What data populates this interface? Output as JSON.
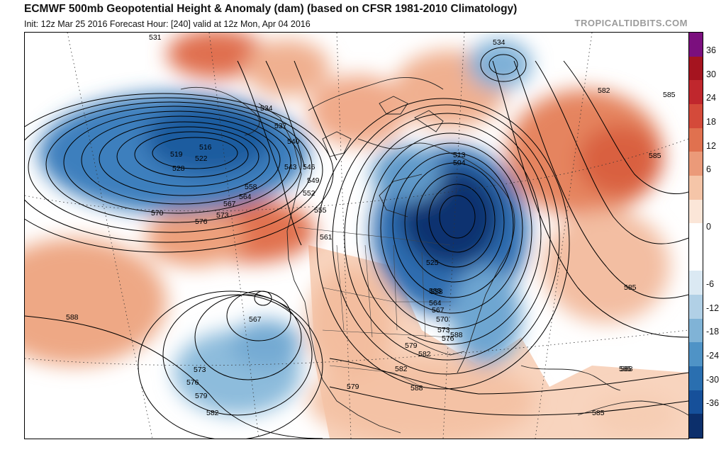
{
  "header": {
    "title": "ECMWF 500mb Geopotential Height & Anomaly (dam) (based on CFSR 1981-2010 Climatology)",
    "subtitle": "Init: 12z Mar 25 2016   Forecast Hour: [240]   valid at 12z Mon, Apr 04 2016",
    "credit": "TROPICALTIDBITS.COM"
  },
  "colorbar": {
    "ticks": [
      "36",
      "30",
      "24",
      "18",
      "12",
      "6",
      "0",
      "-6",
      "-12",
      "-18",
      "-24",
      "-30",
      "-36"
    ],
    "colors": [
      "#7b0f7e",
      "#a5141f",
      "#c0272d",
      "#d44a3a",
      "#e0714f",
      "#eb9a79",
      "#f5c5a8",
      "#fbe6d8",
      "#ffffff",
      "#ffffff",
      "#dbe9f3",
      "#b1d0e6",
      "#80b3d6",
      "#4f93c6",
      "#2a6fb0",
      "#16509a",
      "#0c2f6b"
    ]
  },
  "contour_labels": [
    "531",
    "534",
    "537",
    "540",
    "543",
    "546",
    "549",
    "552",
    "555",
    "558",
    "561",
    "564",
    "567",
    "570",
    "573",
    "576",
    "579",
    "582",
    "585",
    "588",
    "516",
    "519",
    "522",
    "528",
    "513",
    "504",
    "525",
    "555",
    "558",
    "564",
    "567",
    "570",
    "573",
    "576",
    "579",
    "582",
    "585",
    "588",
    "567",
    "573",
    "576",
    "579",
    "582",
    "534",
    "582",
    "585",
    "585",
    "585",
    "588",
    "588"
  ],
  "legend_colors": {
    "positive": "#e0714f",
    "negative": "#2a6fb0",
    "land": "#f6c8ac"
  }
}
